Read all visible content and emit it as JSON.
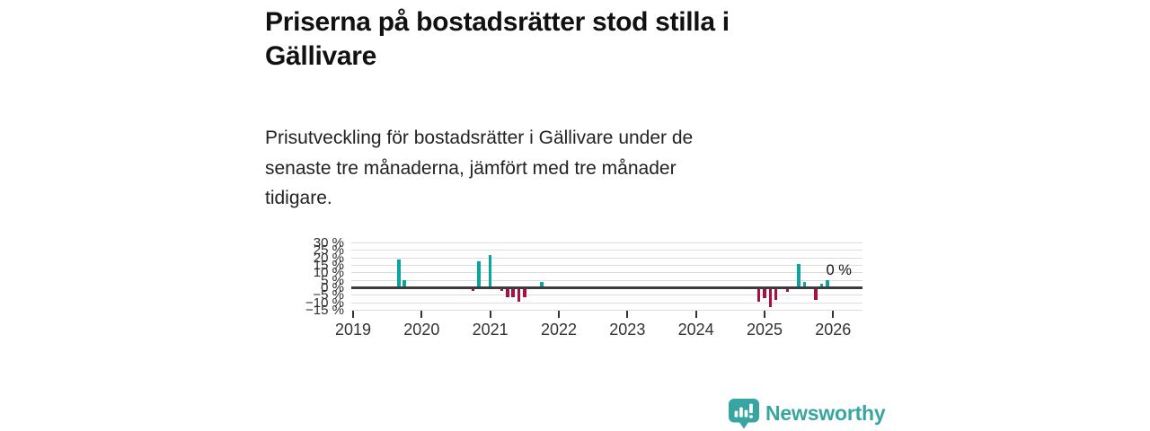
{
  "header": {
    "title_lines": [
      "Priserna på bostadsrätter stod stilla i",
      "Gällivare"
    ],
    "subtitle_lines": [
      "Prisutveckling för bostadsrätter i Gällivare under de",
      "senaste tre månaderna, jämfört med tre månader",
      "tidigare."
    ]
  },
  "chart_data": {
    "type": "bar",
    "title": "",
    "xlabel": "",
    "ylabel": "",
    "ylim": [
      -15,
      30
    ],
    "grid": true,
    "ytick_values": [
      30,
      25,
      20,
      15,
      10,
      5,
      0,
      -5,
      -10,
      -15
    ],
    "ytick_labels": [
      "30 %",
      "25 %",
      "20 %",
      "15 %",
      "10 %",
      "5 %",
      "0 %",
      "−5 %",
      "−10 %",
      "−15 %"
    ],
    "xtick_years": [
      2019,
      2020,
      2021,
      2022,
      2023,
      2024,
      2025,
      2026
    ],
    "x_start": "2018-11",
    "x_end": "2026-06",
    "bars": [
      {
        "date": "2019-09",
        "value": 19
      },
      {
        "date": "2019-10",
        "value": 5
      },
      {
        "date": "2020-10",
        "value": -2
      },
      {
        "date": "2020-11",
        "value": 18
      },
      {
        "date": "2021-01",
        "value": 22
      },
      {
        "date": "2021-03",
        "value": -2
      },
      {
        "date": "2021-04",
        "value": -6
      },
      {
        "date": "2021-05",
        "value": -6
      },
      {
        "date": "2021-06",
        "value": -9
      },
      {
        "date": "2021-07",
        "value": -6
      },
      {
        "date": "2021-10",
        "value": 4
      },
      {
        "date": "2024-12",
        "value": -9
      },
      {
        "date": "2025-01",
        "value": -7
      },
      {
        "date": "2025-02",
        "value": -13
      },
      {
        "date": "2025-03",
        "value": -8
      },
      {
        "date": "2025-05",
        "value": -2.5
      },
      {
        "date": "2025-07",
        "value": 16
      },
      {
        "date": "2025-08",
        "value": 4
      },
      {
        "date": "2025-10",
        "value": -8
      },
      {
        "date": "2025-11",
        "value": 3
      },
      {
        "date": "2025-12",
        "value": 5
      },
      {
        "date": "2026-02",
        "value": 0
      }
    ],
    "annotation": {
      "text": "0 %",
      "date": "2026-02",
      "value": 0
    },
    "colors": {
      "positive": "#0ba5a0",
      "negative": "#a61043",
      "gridline": "#dcdcdc",
      "zero_line": "#3c3c3c",
      "axis_text": "#333333"
    },
    "legend": null
  },
  "footer": {
    "brand": "Newsworthy",
    "brand_color": "#38a5a1",
    "logo_icon": "newsworthy-speech-bubble-chart-icon"
  }
}
